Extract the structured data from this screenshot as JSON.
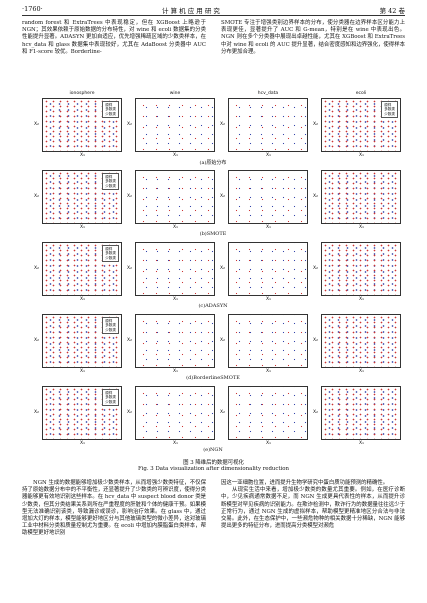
{
  "header": {
    "page": "·1760·",
    "journal": "计 算 机 应 用 研 究",
    "volume": "第 42 卷"
  },
  "top_left": "random forest 和 ExtraTrees 中表现稳定，但在 XGBoost 上略逊于 NGN；其效果依赖于原始数据的分布特性，对 wine 和 ecoli 数据集的分类性能提升显著。ADASYN 更加自适应，优先增强稀疏区域的少数类样本，在 hcv_data 和 glass 数据集中表现较好，尤其在 AdaBoost 分类器中 AUC 和 F1-score 较优。Borderline-",
  "top_right": "SMOTE 专注于增强类别边界样本的分布，使分类器在边界样本区分能力上表现更佳，显著提升了 AUC 和 G-mean，特别是在 wine 中表现出色。NGN 则在多个分类器中展现出卓越性能，尤其在 XGBoost 和 ExtraTrees 中对 wine 和 ecoli 的 AUC 提升显著，结合密度感知和边界强化，使得样本分布更加合理。",
  "figure": {
    "columns": [
      "ionosphere",
      "wine",
      "hcv_data",
      "ecoli"
    ],
    "rows": [
      "(a)原始分布",
      "(b)SMOTE",
      "(c)ADASYN",
      "(d)BorderlineSMOTE",
      "(e)NGN"
    ],
    "x_label": "X₁",
    "y_label": "X₂",
    "legend": [
      "原样",
      "多数类",
      "少数类"
    ],
    "caption_cn": "图 3   降维后的数据可视化",
    "caption_en": "Fig. 3   Data visualization after dimensionality reduction"
  },
  "bottom_left": "NGN 生成的数据能够增加极少数类样本，从而增强少数类特征，不仅保持了原始数据分布中的不平衡性，还显著提升了少数类的可辨识度，使得分类器能够更有效地识别这些样本。在 hcv_data 中 suspect blood donor 类是少数类，但其分类结果关系到所在严重程度的肝脏和个体的健康干预。如果模型无法准确识别该类，导致漏诊或误诊，影响治疗效果。在 glass 中，通过增加大灯的样本，模型能够更好地区分与其他玻璃类型的微小差异，这对玻璃工业中材料分类和质量控制尤为重要。在 ecoli 中增加内膜脂蛋白类样本，帮助模型更好地识别",
  "bottom_right": [
    "因这一亚细胞位置，进而提升生物学研究中蛋白质功能预测的精确性。",
    "从现实生活中来看，增加极少数类的数量尤其重要。例如，在医疗诊断中，少见疾病通常数据不足，而 NGN 生成更具代表性的样本，从而提升诊断模型对罕见疾病的识别能力。在欺诈检测中，欺诈行为的数据量往往远少于正常行为，通过 NGN 生成的虚拟样本，帮助模型更精准地区分合法与非法交易。此外，在生态保护中，一些濒危物种的相关数据十分稀缺，NGN 能够提出更多的特征分布，进而提高分类模型对濒危"
  ]
}
